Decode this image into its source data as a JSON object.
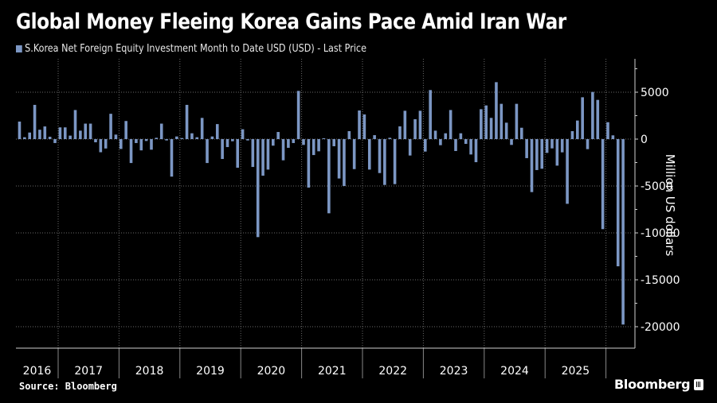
{
  "title": "Global Money Fleeing Korea Gains Pace Amid Iran War",
  "legend": {
    "label": "S.Korea Net Foreign Equity Investment Month to Date USD (USD) - Last Price"
  },
  "source": "Source: Bloomberg",
  "brand": "Bloomberg",
  "colors": {
    "bar": "#7c97c4",
    "background": "#000000",
    "grid": "#6a6a6a",
    "axis": "#d0d0d0"
  },
  "chart_data": {
    "type": "bar",
    "title": "Global Money Fleeing Korea Gains Pace Amid Iran War",
    "series": [
      {
        "name": "S.Korea Net Foreign Equity Investment Month to Date USD (USD) - Last Price",
        "values": [
          1870,
          200,
          700,
          3650,
          1000,
          1350,
          250,
          -420,
          1250,
          1250,
          370,
          3100,
          900,
          1650,
          1650,
          -340,
          -1400,
          -1000,
          2700,
          480,
          -1050,
          1930,
          -2550,
          -420,
          -1200,
          -200,
          -1130,
          140,
          1650,
          -140,
          -4000,
          280,
          110,
          3650,
          620,
          200,
          2260,
          -2550,
          280,
          1600,
          -2120,
          -850,
          -230,
          -3050,
          1050,
          -140,
          -2970,
          -10450,
          -3900,
          -3250,
          -700,
          760,
          -2260,
          -930,
          -420,
          5140,
          -620,
          -5170,
          -1700,
          -1300,
          90,
          -7910,
          -760,
          -4200,
          -5000,
          850,
          -3200,
          3050,
          2630,
          -3250,
          420,
          -3620,
          -4890,
          140,
          -4800,
          1360,
          3020,
          -1750,
          2120,
          3020,
          -1330,
          5230,
          900,
          -650,
          620,
          3100,
          -1270,
          620,
          -510,
          -1640,
          -2460,
          3190,
          3590,
          2260,
          6070,
          3760,
          1750,
          -620,
          3760,
          1210,
          -2030,
          -5650,
          -3300,
          -3160,
          -1470,
          -990,
          -2830,
          -1410,
          -6900,
          850,
          1980,
          4460,
          -1070,
          5030,
          4180,
          -9600,
          1800,
          400,
          -13560,
          -19770
        ]
      }
    ],
    "start_month": "2016-05",
    "frequency": "monthly",
    "x_tick_labels": [
      "2016",
      "2017",
      "2018",
      "2019",
      "2020",
      "2021",
      "2022",
      "2023",
      "2024",
      "2025"
    ],
    "y_ticks": [
      5000,
      0,
      -5000,
      -10000,
      -15000,
      -20000
    ],
    "y_tick_labels": [
      "5000",
      "0",
      "-5000",
      "-10000",
      "-15000",
      "-20000"
    ],
    "ylabel": "Million US dollars",
    "xlabel": "",
    "ylim": [
      -22300,
      9700
    ],
    "grid": true,
    "legend_position": "top-left",
    "y_axis_position": "right"
  }
}
